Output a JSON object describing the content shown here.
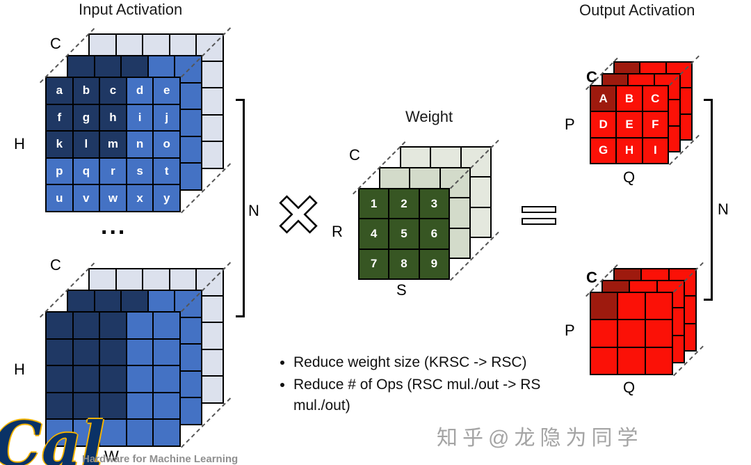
{
  "titles": {
    "input": "Input Activation",
    "weight": "Weight",
    "output": "Output Activation"
  },
  "labels": {
    "input_top_c": "C",
    "input_top_h": "H",
    "ellipsis": "...",
    "input_bottom_c": "C",
    "input_bottom_h": "H",
    "input_bottom_w": "W",
    "n_input": "N",
    "n_output": "N",
    "weight_c": "C",
    "weight_r": "R",
    "weight_s": "S",
    "output_top_c": "C",
    "output_top_p": "P",
    "output_top_q": "Q",
    "output_bottom_c": "C",
    "output_bottom_p": "P",
    "output_bottom_q": "Q"
  },
  "operators": {
    "multiply": "×",
    "equals": "="
  },
  "tensors": {
    "input_top": {
      "rows": 5,
      "cols": 5,
      "cell": 39,
      "front": {
        "fill": "#4472C4",
        "darkFill": "#1F3864",
        "dark": [
          0,
          1,
          2,
          5,
          6,
          7,
          10,
          11,
          12
        ],
        "cells": [
          "a",
          "b",
          "c",
          "d",
          "e",
          "f",
          "g",
          "h",
          "i",
          "j",
          "k",
          "l",
          "m",
          "n",
          "o",
          "p",
          "q",
          "r",
          "s",
          "t",
          "u",
          "v",
          "w",
          "x",
          "y"
        ]
      },
      "mid": {
        "fill": "#4472C4",
        "darkFill": "#1F3864",
        "dark": [
          0,
          1,
          2,
          5,
          6,
          7,
          10,
          11,
          12
        ]
      },
      "back": {
        "fill": "#DCE1ED",
        "darkFill": "#DCE1ED",
        "dark": []
      }
    },
    "input_bottom": {
      "rows": 5,
      "cols": 5,
      "cell": 39,
      "front": {
        "fill": "#4472C4",
        "darkFill": "#1F3864",
        "dark": [
          0,
          1,
          2,
          5,
          6,
          7,
          10,
          11,
          12,
          15,
          16,
          17
        ]
      },
      "mid": {
        "fill": "#4472C4",
        "darkFill": "#1F3864",
        "dark": [
          0,
          1,
          2,
          5,
          6,
          7,
          10,
          11,
          12,
          15,
          16,
          17
        ]
      },
      "back": {
        "fill": "#DCE1ED",
        "darkFill": "#DCE1ED",
        "dark": []
      }
    },
    "weight": {
      "rows": 3,
      "cols": 3,
      "cell": 44,
      "front": {
        "fill": "#375623",
        "darkFill": "#375623",
        "dark": [],
        "cells": [
          "1",
          "2",
          "3",
          "4",
          "5",
          "6",
          "7",
          "8",
          "9"
        ]
      },
      "mid": {
        "fill": "#D3DBCA",
        "darkFill": "#D3DBCA",
        "dark": []
      },
      "back": {
        "fill": "#E4E8DE",
        "darkFill": "#E4E8DE",
        "dark": []
      }
    },
    "output_top": {
      "rows": 3,
      "cols": 3,
      "cell": 38,
      "front": {
        "fill": "#FB1107",
        "darkFill": "#9E1A0E",
        "dark": [
          0
        ],
        "cells": [
          "A",
          "B",
          "C",
          "D",
          "E",
          "F",
          "G",
          "H",
          "I"
        ]
      },
      "mid": {
        "fill": "#FB1107",
        "darkFill": "#9E1A0E",
        "dark": [
          0
        ]
      },
      "back": {
        "fill": "#FB1107",
        "darkFill": "#9E1A0E",
        "dark": [
          0
        ]
      }
    },
    "output_bottom": {
      "rows": 3,
      "cols": 3,
      "cell": 40,
      "front": {
        "fill": "#FB1107",
        "darkFill": "#9E1A0E",
        "dark": [
          0
        ]
      },
      "mid": {
        "fill": "#FB1107",
        "darkFill": "#9E1A0E",
        "dark": [
          0
        ]
      },
      "back": {
        "fill": "#FB1107",
        "darkFill": "#9E1A0E",
        "dark": [
          0
        ]
      }
    }
  },
  "bullets": [
    "Reduce weight size (KRSC -> RSC)",
    "Reduce # of Ops (RSC mul./out -> RS mul./out)"
  ],
  "footer": {
    "logo": "Cal",
    "course": "Hardware for Machine Learning",
    "watermark": "知乎@龙隐为同学"
  }
}
